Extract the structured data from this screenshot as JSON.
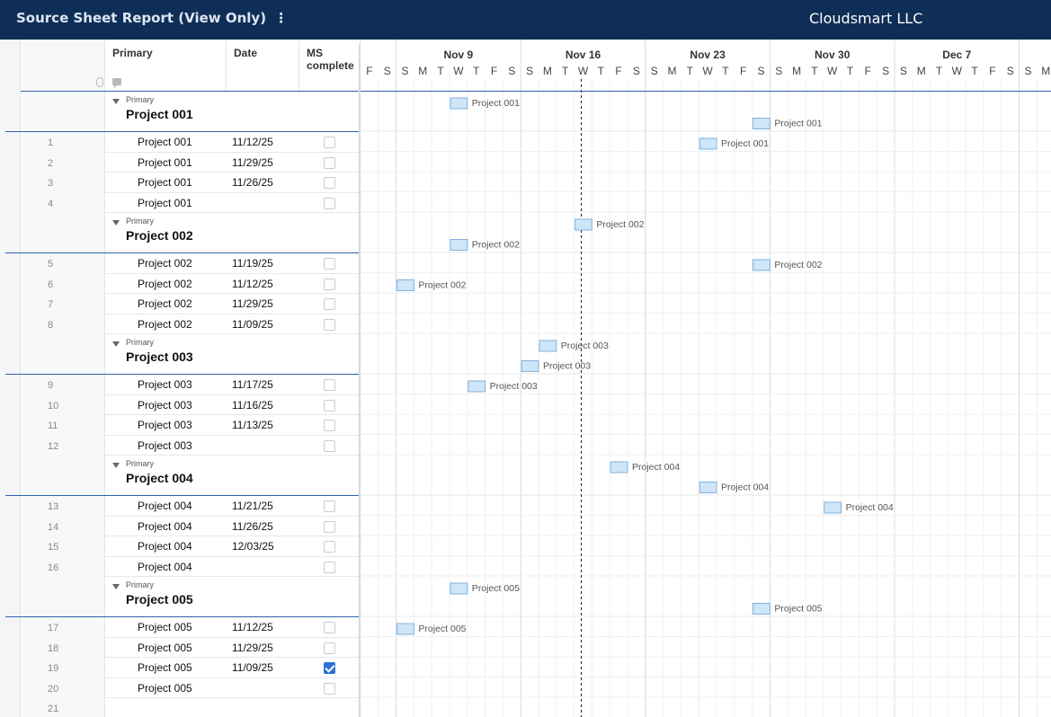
{
  "app": {
    "title": "Source Sheet Report (View Only)",
    "menu_glyph": "⋮",
    "company": "Cloudsmart LLC"
  },
  "columns": {
    "primary": "Primary",
    "date": "Date",
    "ms_line1": "MS",
    "ms_line2": "complete"
  },
  "group_sub_label": "Primary",
  "groups": [
    {
      "title": "Project 001",
      "rows": [
        {
          "num": "1",
          "primary": "Project 001",
          "date": "11/12/25",
          "complete": false
        },
        {
          "num": "2",
          "primary": "Project 001",
          "date": "11/29/25",
          "complete": false
        },
        {
          "num": "3",
          "primary": "Project 001",
          "date": "11/26/25",
          "complete": false
        },
        {
          "num": "4",
          "primary": "Project 001",
          "date": "",
          "complete": false
        }
      ]
    },
    {
      "title": "Project 002",
      "rows": [
        {
          "num": "5",
          "primary": "Project 002",
          "date": "11/19/25",
          "complete": false
        },
        {
          "num": "6",
          "primary": "Project 002",
          "date": "11/12/25",
          "complete": false
        },
        {
          "num": "7",
          "primary": "Project 002",
          "date": "11/29/25",
          "complete": false
        },
        {
          "num": "8",
          "primary": "Project 002",
          "date": "11/09/25",
          "complete": false
        }
      ]
    },
    {
      "title": "Project 003",
      "rows": [
        {
          "num": "9",
          "primary": "Project 003",
          "date": "11/17/25",
          "complete": false
        },
        {
          "num": "10",
          "primary": "Project 003",
          "date": "11/16/25",
          "complete": false
        },
        {
          "num": "11",
          "primary": "Project 003",
          "date": "11/13/25",
          "complete": false
        },
        {
          "num": "12",
          "primary": "Project 003",
          "date": "",
          "complete": false
        }
      ]
    },
    {
      "title": "Project 004",
      "rows": [
        {
          "num": "13",
          "primary": "Project 004",
          "date": "11/21/25",
          "complete": false
        },
        {
          "num": "14",
          "primary": "Project 004",
          "date": "11/26/25",
          "complete": false
        },
        {
          "num": "15",
          "primary": "Project 004",
          "date": "12/03/25",
          "complete": false
        },
        {
          "num": "16",
          "primary": "Project 004",
          "date": "",
          "complete": false
        }
      ]
    },
    {
      "title": "Project 005",
      "rows": [
        {
          "num": "17",
          "primary": "Project 005",
          "date": "11/12/25",
          "complete": false
        },
        {
          "num": "18",
          "primary": "Project 005",
          "date": "11/29/25",
          "complete": false
        },
        {
          "num": "19",
          "primary": "Project 005",
          "date": "11/09/25",
          "complete": true
        },
        {
          "num": "20",
          "primary": "Project 005",
          "date": "",
          "complete": false
        }
      ]
    }
  ],
  "trailing_rows": [
    "21"
  ],
  "timeline": {
    "first_day": "11/07/25",
    "today": "11/19/25",
    "weeks": [
      "Nov 9",
      "Nov 16",
      "Nov 23",
      "Nov 30",
      "Dec 7"
    ],
    "day_letters": [
      "F",
      "S",
      "S",
      "M",
      "T",
      "W",
      "T",
      "F",
      "S",
      "S",
      "M",
      "T",
      "W",
      "T",
      "F",
      "S",
      "S",
      "M",
      "T",
      "W",
      "T",
      "F",
      "S",
      "S",
      "M",
      "T",
      "W",
      "T",
      "F",
      "S",
      "S",
      "M",
      "T",
      "W",
      "T",
      "F",
      "S",
      "S",
      "M"
    ]
  },
  "colors": {
    "header_bg": "#0f2e57",
    "accent_line": "#2f62a8",
    "bar_fill": "#cfe5f8",
    "bar_border": "#7fb2e0",
    "checkbox_checked": "#2f6fd6"
  }
}
